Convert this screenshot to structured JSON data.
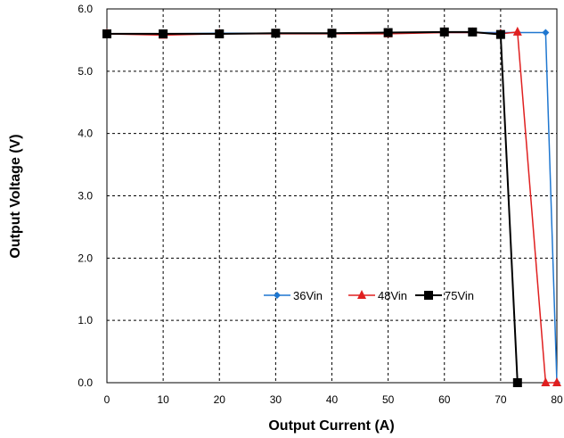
{
  "chart_data": {
    "type": "line",
    "title": "",
    "xlabel": "Output Current (A)",
    "ylabel": "Output Voltage (V)",
    "xlim": [
      0,
      80
    ],
    "ylim": [
      0,
      6
    ],
    "x_ticks": [
      "0",
      "10",
      "20",
      "30",
      "40",
      "50",
      "60",
      "70",
      "80"
    ],
    "x_tick_values": [
      0,
      10,
      20,
      30,
      40,
      50,
      60,
      70,
      80
    ],
    "y_ticks": [
      "0.0",
      "1.0",
      "2.0",
      "3.0",
      "4.0",
      "5.0",
      "6.0"
    ],
    "y_tick_values": [
      0,
      1,
      2,
      3,
      4,
      5,
      6
    ],
    "grid": true,
    "legend_position": "center-right",
    "series": [
      {
        "name": "36Vin",
        "color": "#1f77d0",
        "marker": "diamond",
        "points": [
          [
            0,
            5.6
          ],
          [
            10,
            5.6
          ],
          [
            20,
            5.61
          ],
          [
            30,
            5.61
          ],
          [
            40,
            5.61
          ],
          [
            50,
            5.62
          ],
          [
            60,
            5.62
          ],
          [
            65,
            5.62
          ],
          [
            70,
            5.62
          ],
          [
            73,
            5.62
          ],
          [
            78,
            5.62
          ],
          [
            80,
            0
          ]
        ]
      },
      {
        "name": "48Vin",
        "color": "#e02020",
        "marker": "triangle",
        "points": [
          [
            0,
            5.6
          ],
          [
            10,
            5.58
          ],
          [
            20,
            5.6
          ],
          [
            30,
            5.6
          ],
          [
            40,
            5.6
          ],
          [
            50,
            5.6
          ],
          [
            60,
            5.62
          ],
          [
            65,
            5.62
          ],
          [
            70,
            5.6
          ],
          [
            73,
            5.63
          ],
          [
            78,
            0
          ],
          [
            80,
            0
          ]
        ]
      },
      {
        "name": "75Vin",
        "color": "#000000",
        "marker": "square",
        "points": [
          [
            0,
            5.6
          ],
          [
            10,
            5.6
          ],
          [
            20,
            5.6
          ],
          [
            30,
            5.61
          ],
          [
            40,
            5.61
          ],
          [
            50,
            5.62
          ],
          [
            60,
            5.63
          ],
          [
            65,
            5.63
          ],
          [
            70,
            5.59
          ],
          [
            73,
            0
          ]
        ]
      }
    ]
  }
}
